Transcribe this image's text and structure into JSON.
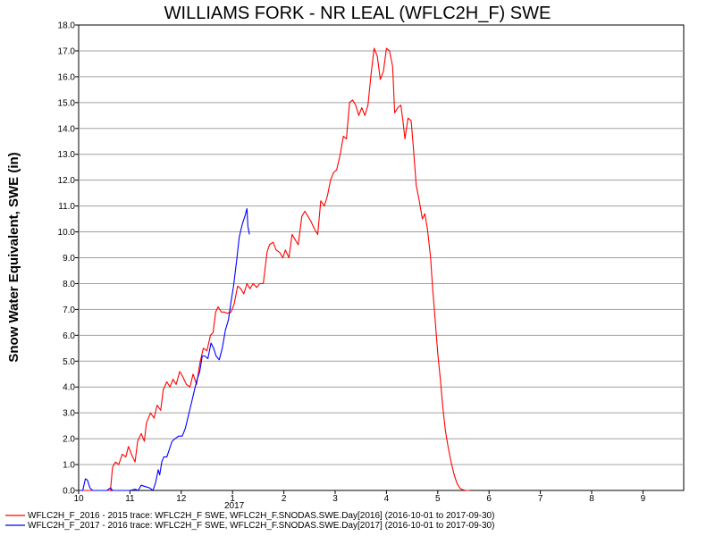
{
  "chart_data": {
    "type": "line",
    "title": "WILLIAMS FORK - NR LEAL (WFLC2H_F) SWE",
    "ylabel": "Snow Water Equivalent, SWE (in)",
    "xlabel": "",
    "x_ticks": [
      "10",
      "11",
      "12",
      "1",
      "2",
      "3",
      "4",
      "5",
      "6",
      "7",
      "8",
      "9"
    ],
    "x_year_label": "2017",
    "y_ticks": [
      "0.0",
      "1.0",
      "2.0",
      "3.0",
      "4.0",
      "5.0",
      "6.0",
      "7.0",
      "8.0",
      "9.0",
      "10.0",
      "11.0",
      "12.0",
      "13.0",
      "14.0",
      "15.0",
      "16.0",
      "17.0",
      "18.0"
    ],
    "ylim": [
      0,
      18
    ],
    "x_axis_unit": "month",
    "xlim": [
      0,
      12
    ],
    "grid": "horizontal",
    "legend_position": "bottom",
    "series": [
      {
        "name": "WFLC2H_F_2016 - 2015 trace: WFLC2H_F SWE, WFLC2H_F.SNODAS.SWE.Day[2016] (2016-10-01 to 2017-09-30)",
        "color": "#ff0000",
        "points": [
          [
            0.0,
            0.0
          ],
          [
            0.5,
            0.0
          ],
          [
            0.62,
            0.0
          ],
          [
            0.66,
            0.9
          ],
          [
            0.72,
            1.1
          ],
          [
            0.78,
            1.0
          ],
          [
            0.85,
            1.4
          ],
          [
            0.92,
            1.3
          ],
          [
            0.97,
            1.7
          ],
          [
            1.03,
            1.4
          ],
          [
            1.1,
            1.1
          ],
          [
            1.15,
            1.9
          ],
          [
            1.22,
            2.2
          ],
          [
            1.28,
            1.9
          ],
          [
            1.32,
            2.6
          ],
          [
            1.4,
            3.0
          ],
          [
            1.47,
            2.8
          ],
          [
            1.53,
            3.3
          ],
          [
            1.6,
            3.1
          ],
          [
            1.65,
            3.9
          ],
          [
            1.72,
            4.2
          ],
          [
            1.78,
            4.0
          ],
          [
            1.84,
            4.3
          ],
          [
            1.9,
            4.1
          ],
          [
            1.97,
            4.6
          ],
          [
            2.03,
            4.4
          ],
          [
            2.1,
            4.1
          ],
          [
            2.17,
            4.0
          ],
          [
            2.23,
            4.5
          ],
          [
            2.3,
            4.1
          ],
          [
            2.36,
            4.9
          ],
          [
            2.43,
            5.5
          ],
          [
            2.5,
            5.4
          ],
          [
            2.57,
            6.0
          ],
          [
            2.62,
            6.1
          ],
          [
            2.67,
            6.9
          ],
          [
            2.72,
            7.1
          ],
          [
            2.78,
            6.9
          ],
          [
            2.84,
            6.9
          ],
          [
            2.9,
            6.85
          ],
          [
            2.97,
            6.9
          ],
          [
            3.03,
            7.2
          ],
          [
            3.1,
            7.9
          ],
          [
            3.16,
            7.8
          ],
          [
            3.22,
            7.6
          ],
          [
            3.28,
            8.0
          ],
          [
            3.34,
            7.8
          ],
          [
            3.4,
            8.0
          ],
          [
            3.47,
            7.85
          ],
          [
            3.53,
            8.0
          ],
          [
            3.6,
            8.0
          ],
          [
            3.67,
            9.2
          ],
          [
            3.72,
            9.5
          ],
          [
            3.79,
            9.6
          ],
          [
            3.85,
            9.3
          ],
          [
            3.92,
            9.2
          ],
          [
            3.98,
            9.0
          ],
          [
            4.03,
            9.3
          ],
          [
            4.1,
            9.0
          ],
          [
            4.16,
            9.9
          ],
          [
            4.22,
            9.7
          ],
          [
            4.28,
            9.5
          ],
          [
            4.35,
            10.6
          ],
          [
            4.41,
            10.8
          ],
          [
            4.47,
            10.6
          ],
          [
            4.53,
            10.4
          ],
          [
            4.6,
            10.1
          ],
          [
            4.66,
            9.9
          ],
          [
            4.72,
            11.2
          ],
          [
            4.79,
            11.0
          ],
          [
            4.85,
            11.4
          ],
          [
            4.91,
            12.0
          ],
          [
            4.97,
            12.3
          ],
          [
            5.03,
            12.4
          ],
          [
            5.1,
            13.0
          ],
          [
            5.16,
            13.7
          ],
          [
            5.22,
            13.6
          ],
          [
            5.28,
            15.0
          ],
          [
            5.34,
            15.1
          ],
          [
            5.4,
            14.9
          ],
          [
            5.46,
            14.5
          ],
          [
            5.52,
            14.8
          ],
          [
            5.58,
            14.5
          ],
          [
            5.64,
            14.9
          ],
          [
            5.7,
            16.1
          ],
          [
            5.76,
            17.1
          ],
          [
            5.82,
            16.8
          ],
          [
            5.88,
            15.9
          ],
          [
            5.94,
            16.2
          ],
          [
            6.0,
            17.1
          ],
          [
            6.06,
            17.0
          ],
          [
            6.12,
            16.4
          ],
          [
            6.16,
            14.6
          ],
          [
            6.22,
            14.8
          ],
          [
            6.28,
            14.9
          ],
          [
            6.32,
            14.3
          ],
          [
            6.36,
            13.6
          ],
          [
            6.42,
            14.4
          ],
          [
            6.48,
            14.3
          ],
          [
            6.52,
            13.4
          ],
          [
            6.58,
            11.8
          ],
          [
            6.64,
            11.2
          ],
          [
            6.7,
            10.5
          ],
          [
            6.75,
            10.7
          ],
          [
            6.8,
            10.1
          ],
          [
            6.86,
            9.0
          ],
          [
            6.9,
            7.8
          ],
          [
            6.95,
            6.6
          ],
          [
            7.0,
            5.3
          ],
          [
            7.05,
            4.3
          ],
          [
            7.1,
            3.2
          ],
          [
            7.15,
            2.3
          ],
          [
            7.2,
            1.7
          ],
          [
            7.26,
            1.1
          ],
          [
            7.32,
            0.6
          ],
          [
            7.38,
            0.25
          ],
          [
            7.44,
            0.07
          ],
          [
            7.5,
            0.02
          ],
          [
            7.56,
            0.0
          ],
          [
            7.62,
            0.0
          ]
        ]
      },
      {
        "name": "WFLC2H_F_2017 - 2016 trace: WFLC2H_F SWE, WFLC2H_F.SNODAS.SWE.Day[2017] (2016-10-01 to 2017-09-30)",
        "color": "#0000ff",
        "points": [
          [
            0.0,
            0.0
          ],
          [
            0.08,
            0.0
          ],
          [
            0.13,
            0.45
          ],
          [
            0.17,
            0.4
          ],
          [
            0.22,
            0.1
          ],
          [
            0.27,
            0.0
          ],
          [
            0.55,
            0.0
          ],
          [
            0.62,
            0.1
          ],
          [
            0.66,
            0.0
          ],
          [
            1.0,
            0.0
          ],
          [
            1.1,
            0.05
          ],
          [
            1.16,
            0.0
          ],
          [
            1.22,
            0.2
          ],
          [
            1.3,
            0.15
          ],
          [
            1.38,
            0.1
          ],
          [
            1.45,
            0.0
          ],
          [
            1.5,
            0.3
          ],
          [
            1.55,
            0.8
          ],
          [
            1.58,
            0.6
          ],
          [
            1.62,
            1.1
          ],
          [
            1.66,
            1.3
          ],
          [
            1.72,
            1.3
          ],
          [
            1.77,
            1.6
          ],
          [
            1.82,
            1.9
          ],
          [
            1.88,
            2.0
          ],
          [
            1.95,
            2.1
          ],
          [
            2.02,
            2.1
          ],
          [
            2.08,
            2.4
          ],
          [
            2.14,
            2.9
          ],
          [
            2.2,
            3.4
          ],
          [
            2.26,
            3.9
          ],
          [
            2.31,
            4.3
          ],
          [
            2.36,
            4.6
          ],
          [
            2.41,
            5.2
          ],
          [
            2.46,
            5.2
          ],
          [
            2.52,
            5.1
          ],
          [
            2.58,
            5.7
          ],
          [
            2.63,
            5.5
          ],
          [
            2.68,
            5.2
          ],
          [
            2.74,
            5.05
          ],
          [
            2.8,
            5.5
          ],
          [
            2.86,
            6.2
          ],
          [
            2.92,
            6.6
          ],
          [
            2.97,
            7.3
          ],
          [
            3.02,
            7.9
          ],
          [
            3.08,
            8.9
          ],
          [
            3.13,
            9.8
          ],
          [
            3.19,
            10.3
          ],
          [
            3.24,
            10.6
          ],
          [
            3.28,
            10.9
          ],
          [
            3.3,
            10.2
          ],
          [
            3.33,
            9.9
          ]
        ]
      }
    ]
  }
}
